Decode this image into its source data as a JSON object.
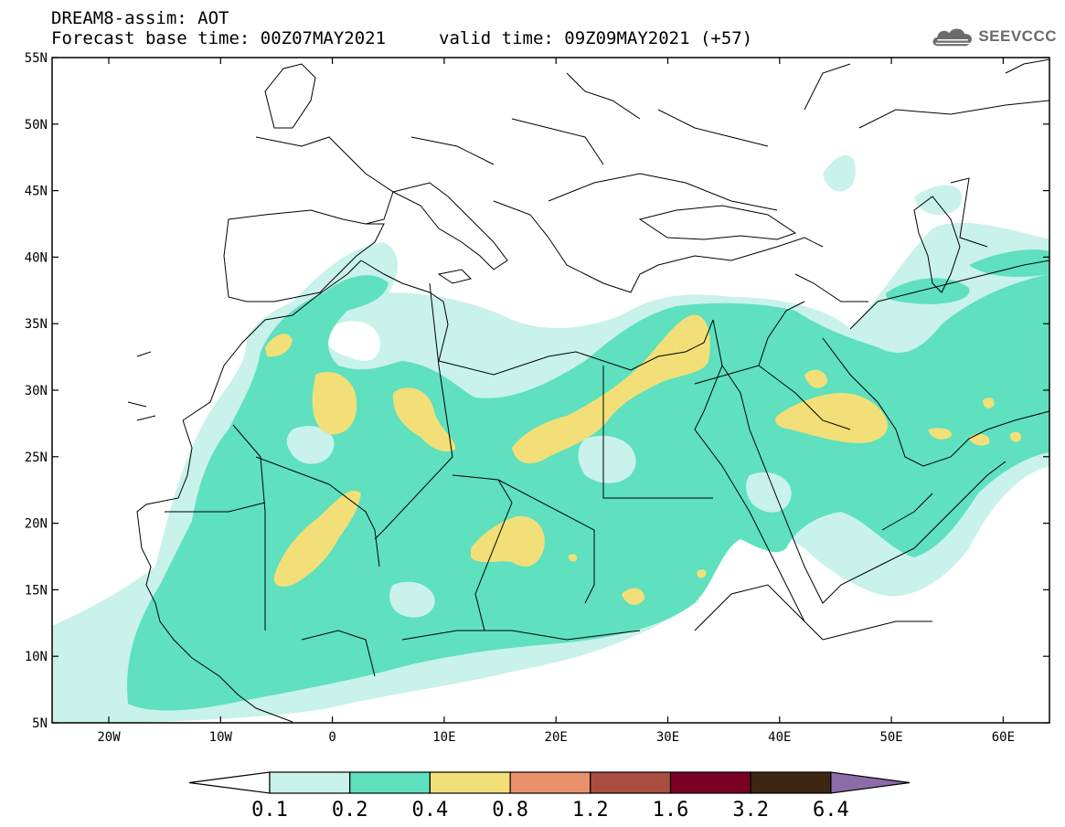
{
  "header": {
    "model_line": "DREAM8-assim: AOT",
    "base_time": "Forecast base time: 00Z07MAY2021",
    "valid_time": "valid time: 09Z09MAY2021 (+57)"
  },
  "logo": {
    "text": "SEEVCCC",
    "icon": "cloud-logo-icon"
  },
  "axes": {
    "lat_labels": [
      "55N",
      "50N",
      "45N",
      "40N",
      "35N",
      "30N",
      "25N",
      "20N",
      "15N",
      "10N",
      "5N"
    ],
    "lon_labels": [
      "20W",
      "10W",
      "0",
      "10E",
      "20E",
      "30E",
      "40E",
      "50E",
      "60E"
    ]
  },
  "colorbar": {
    "labels": [
      "0.1",
      "0.2",
      "0.4",
      "0.8",
      "1.2",
      "1.6",
      "3.2",
      "6.4"
    ],
    "colors": [
      "#ffffff",
      "#c8f2ea",
      "#5fe0bf",
      "#f2df78",
      "#e8916a",
      "#a84e40",
      "#7a0026",
      "#3d2614",
      "#8b6ca8"
    ]
  },
  "colors": {
    "aot_0_1_0_2": "#c8f2ea",
    "aot_0_2_0_4": "#5fe0bf",
    "aot_0_4_0_8": "#f2df78",
    "coastline": "#000000"
  }
}
